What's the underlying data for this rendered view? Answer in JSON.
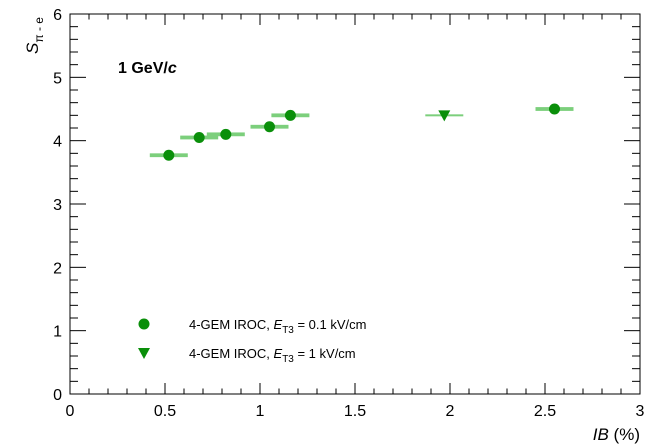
{
  "chart_data": {
    "type": "scatter",
    "title": "",
    "annotation": {
      "value": "1 GeV/",
      "unit_italic": "c"
    },
    "xlabel": {
      "symbol": "IB",
      "unit": " (%)"
    },
    "ylabel": {
      "symbol": "S",
      "subscript": "π - e"
    },
    "xlim": [
      0,
      3
    ],
    "ylim": [
      0,
      6
    ],
    "x_ticks": [
      {
        "value": 0,
        "label": "0"
      },
      {
        "value": 0.5,
        "label": "0.5"
      },
      {
        "value": 1,
        "label": "1"
      },
      {
        "value": 1.5,
        "label": "1.5"
      },
      {
        "value": 2,
        "label": "2"
      },
      {
        "value": 2.5,
        "label": "2.5"
      },
      {
        "value": 3,
        "label": "3"
      }
    ],
    "y_ticks": [
      {
        "value": 0,
        "label": "0"
      },
      {
        "value": 1,
        "label": "1"
      },
      {
        "value": 2,
        "label": "2"
      },
      {
        "value": 3,
        "label": "3"
      },
      {
        "value": 4,
        "label": "4"
      },
      {
        "value": 5,
        "label": "5"
      },
      {
        "value": 6,
        "label": "6"
      }
    ],
    "grid": false,
    "legend_position": "bottom-left",
    "series": [
      {
        "name": "4-GEM IROC, ",
        "legend_sym": "E",
        "legend_sub": "T3",
        "legend_tail": " = 0.1 kV/cm",
        "marker": "circle",
        "color": "#0a8f0a",
        "err_color": "#7ccf7c",
        "points": [
          {
            "x": 0.52,
            "y": 3.77,
            "xerr": 0.1,
            "yerr": 0.03
          },
          {
            "x": 0.68,
            "y": 4.05,
            "xerr": 0.1,
            "yerr": 0.03
          },
          {
            "x": 0.82,
            "y": 4.1,
            "xerr": 0.1,
            "yerr": 0.03
          },
          {
            "x": 1.05,
            "y": 4.22,
            "xerr": 0.1,
            "yerr": 0.03
          },
          {
            "x": 1.16,
            "y": 4.4,
            "xerr": 0.1,
            "yerr": 0.03
          },
          {
            "x": 2.55,
            "y": 4.5,
            "xerr": 0.1,
            "yerr": 0.03
          }
        ]
      },
      {
        "name": "4-GEM IROC, ",
        "legend_sym": "E",
        "legend_sub": "T3",
        "legend_tail": " = 1 kV/cm",
        "marker": "triangle-down",
        "color": "#0a8f0a",
        "err_color": "#7ccf7c",
        "points": [
          {
            "x": 1.97,
            "y": 4.4,
            "xerr": 0.1,
            "yerr": 0.0
          }
        ]
      }
    ]
  }
}
